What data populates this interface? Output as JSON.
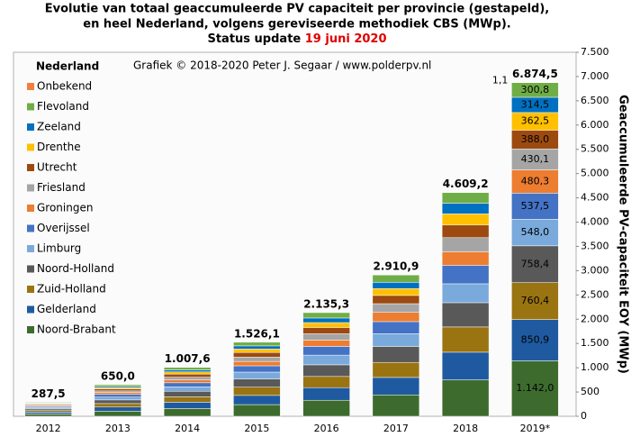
{
  "chart_data": {
    "type": "stacked_bar",
    "title": "Evolutie van totaal geaccumuleerde PV capaciteit per provincie (gestapeld),",
    "title_line2": "en heel Nederland, volgens gereviseerde methodiek CBS (MWp).",
    "title_line3": "Status update",
    "title_date": "19 juni 2020",
    "subtitle": "Grafiek © 2018-2020 Peter J. Segaar / www.polderpv.nl",
    "legend_title": "Nederland",
    "y_axis_label": "Geaccumuleerde PV-capaciteit EOY (MWp)",
    "categories": [
      "2012",
      "2013",
      "2014",
      "2015",
      "2016",
      "2017",
      "2018",
      "2019*"
    ],
    "totals": [
      287.5,
      650.0,
      1007.6,
      1526.1,
      2135.3,
      2910.9,
      4609.2,
      6874.5
    ],
    "totals_labels": [
      "287,5",
      "650,0",
      "1.007,6",
      "1.526,1",
      "2.135,3",
      "2.910,9",
      "4.609,2",
      "6.874,5"
    ],
    "series": [
      {
        "name": "Noord-Brabant",
        "color": "#3d6b2e",
        "values": [
          47,
          105,
          160,
          240,
          330,
          440,
          750,
          1142.0
        ],
        "value_labels": [
          null,
          null,
          null,
          null,
          null,
          null,
          null,
          "1.142,0"
        ]
      },
      {
        "name": "Gelderland",
        "color": "#1f5aa0",
        "values": [
          38,
          85,
          130,
          190,
          260,
          360,
          570,
          850.9
        ],
        "value_labels": [
          null,
          null,
          null,
          null,
          null,
          null,
          null,
          "850,9"
        ]
      },
      {
        "name": "Zuid-Holland",
        "color": "#9a7410",
        "values": [
          32,
          72,
          110,
          170,
          230,
          310,
          520,
          760.4
        ],
        "value_labels": [
          null,
          null,
          null,
          null,
          null,
          null,
          null,
          "760,4"
        ]
      },
      {
        "name": "Noord-Holland",
        "color": "#595959",
        "values": [
          34,
          75,
          115,
          170,
          240,
          330,
          500,
          758.4
        ],
        "value_labels": [
          null,
          null,
          null,
          null,
          null,
          null,
          null,
          "758,4"
        ]
      },
      {
        "name": "Limburg",
        "color": "#7aaadc",
        "values": [
          25,
          58,
          90,
          140,
          200,
          260,
          390,
          548.0
        ],
        "value_labels": [
          null,
          null,
          null,
          null,
          null,
          null,
          null,
          "548,0"
        ]
      },
      {
        "name": "Overijssel",
        "color": "#4472c4",
        "values": [
          24,
          55,
          85,
          130,
          180,
          250,
          380,
          537.5
        ],
        "value_labels": [
          null,
          null,
          null,
          null,
          null,
          null,
          null,
          "537,5"
        ]
      },
      {
        "name": "Groningen",
        "color": "#ed7d31",
        "values": [
          17,
          38,
          60,
          90,
          130,
          190,
          280,
          480.3
        ],
        "value_labels": [
          null,
          null,
          null,
          null,
          null,
          null,
          null,
          "480,3"
        ]
      },
      {
        "name": "Friesland",
        "color": "#a5a5a5",
        "values": [
          15,
          35,
          55,
          90,
          130,
          180,
          290,
          430.1
        ],
        "value_labels": [
          null,
          null,
          null,
          null,
          null,
          null,
          null,
          "430,1"
        ]
      },
      {
        "name": "Utrecht",
        "color": "#9c4a10",
        "values": [
          19,
          42,
          65,
          95,
          130,
          170,
          260,
          388.0
        ],
        "value_labels": [
          null,
          null,
          null,
          null,
          null,
          null,
          null,
          "388,0"
        ]
      },
      {
        "name": "Drenthe",
        "color": "#ffc000",
        "values": [
          12,
          28,
          45,
          70,
          100,
          140,
          230,
          362.5
        ],
        "value_labels": [
          null,
          null,
          null,
          null,
          null,
          null,
          null,
          "362,5"
        ]
      },
      {
        "name": "Zeeland",
        "color": "#0070c0",
        "values": [
          11,
          25,
          40,
          65,
          95,
          130,
          220,
          314.5
        ],
        "value_labels": [
          null,
          null,
          null,
          null,
          null,
          null,
          null,
          "314,5"
        ]
      },
      {
        "name": "Flevoland",
        "color": "#70ad47",
        "values": [
          13.5,
          32,
          52.6,
          76.1,
          110.3,
          150.9,
          219.2,
          300.8
        ],
        "value_labels": [
          null,
          null,
          null,
          null,
          null,
          null,
          null,
          "300,8"
        ]
      },
      {
        "name": "Onbekend",
        "color": "#f08040",
        "values": [
          0,
          0,
          0,
          0,
          0,
          0,
          0,
          1.1
        ],
        "value_labels": [
          null,
          null,
          null,
          null,
          null,
          null,
          null,
          "1,1"
        ]
      }
    ],
    "ylim": [
      0,
      7500
    ],
    "yticks": [
      0,
      500,
      {
        "value": 1000,
        "label": "1.000"
      },
      {
        "value": 1500,
        "label": "1.500"
      },
      {
        "value": 2000,
        "label": "2.000"
      },
      {
        "value": 2500,
        "label": "2.500"
      },
      {
        "value": 3000,
        "label": "3.000"
      },
      {
        "value": 3500,
        "label": "3.500"
      },
      {
        "value": 4000,
        "label": "4.000"
      },
      {
        "value": 4500,
        "label": "4.500"
      },
      {
        "value": 5000,
        "label": "5.000"
      },
      {
        "value": 5500,
        "label": "5.500"
      },
      {
        "value": 6000,
        "label": "6.000"
      },
      {
        "value": 6500,
        "label": "6.500"
      },
      {
        "value": 7000,
        "label": "7.000"
      },
      {
        "value": 7500,
        "label": "7.500"
      }
    ],
    "grid": false
  }
}
